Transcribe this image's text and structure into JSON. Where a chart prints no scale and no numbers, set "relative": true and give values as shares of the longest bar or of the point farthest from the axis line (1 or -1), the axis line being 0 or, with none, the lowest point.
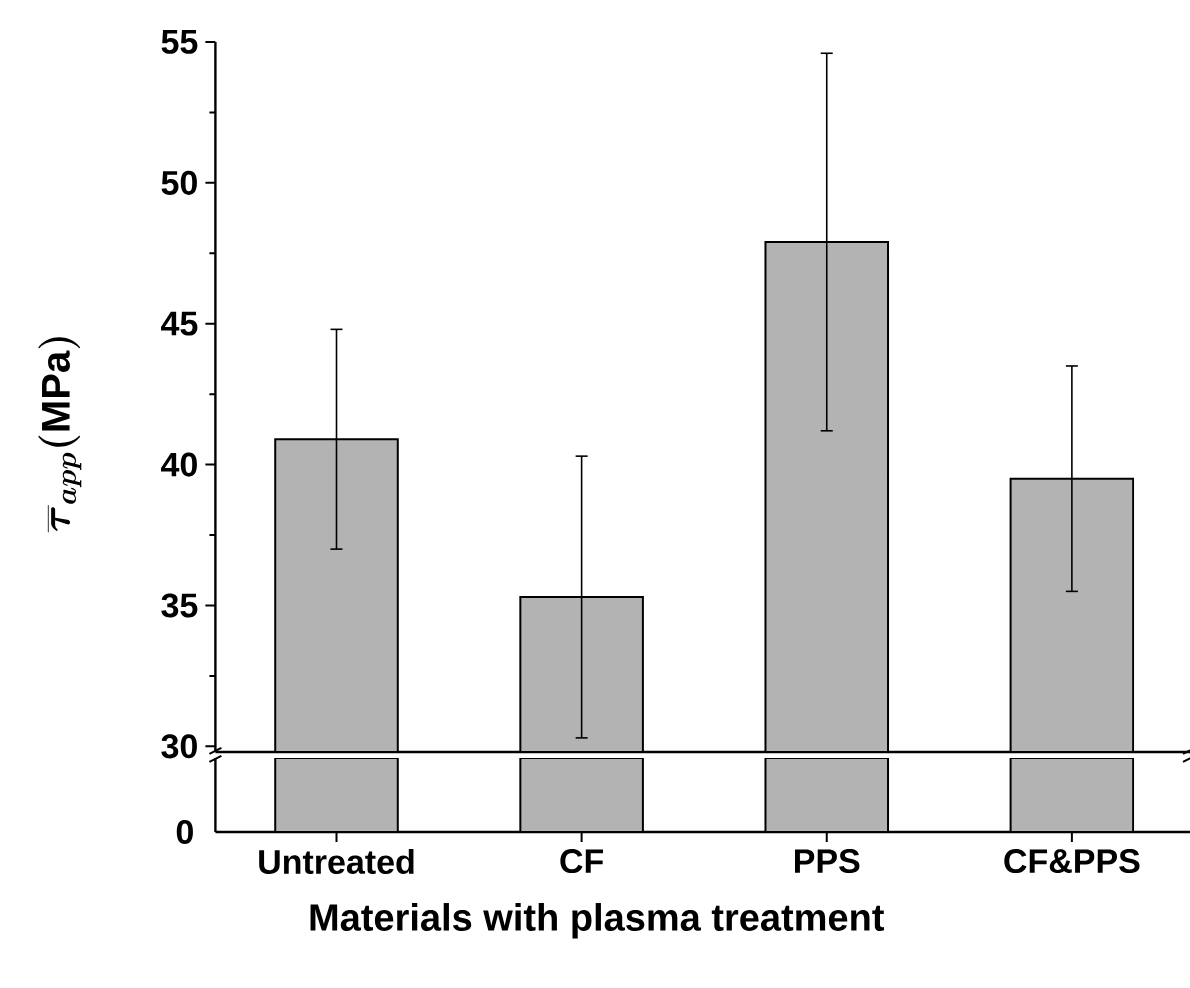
{
  "chart_data": [
    {
      "type": "bar",
      "categories": [
        null,
        null,
        null,
        null
      ],
      "values": [
        40.9,
        35.3,
        47.9,
        39.5
      ],
      "errors": [
        3.9,
        5.0,
        6.7,
        4.0
      ],
      "color": "#b3b3b3",
      "ylabel": "\\overline{\\tau}_{app}\\mathrm{(MPa)}",
      "ylim": [
        29.8,
        55
      ],
      "yticks": [
        30,
        35,
        40,
        45,
        50,
        55
      ],
      "tick_labels": "y"
    },
    {
      "type": "bar",
      "categories": [
        "Untreated",
        "CF",
        "PPS",
        "CF&PPS"
      ],
      "values": [
        1,
        1,
        1,
        1
      ],
      "relative": true,
      "color": "#b3b3b3",
      "xlabel": "Materials with plasma treatment",
      "annotations": [
        "0"
      ]
    }
  ]
}
